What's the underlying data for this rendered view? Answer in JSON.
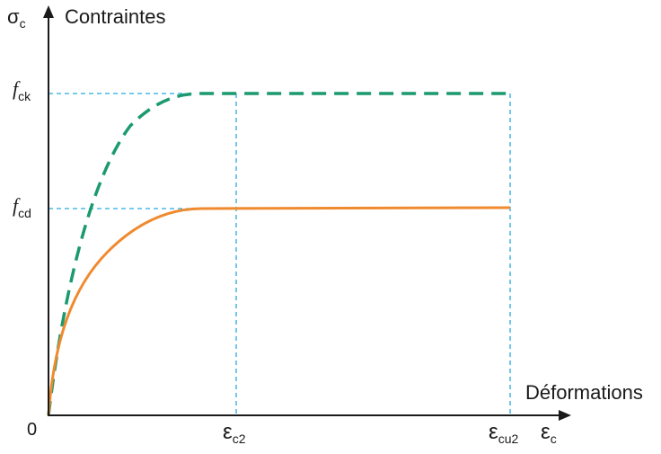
{
  "labels": {
    "y_axis_symbol": "σ",
    "y_axis_symbol_sub": "c",
    "y_axis_title": "Contraintes",
    "x_axis_title": "Déformations",
    "x_axis_symbol": "ε",
    "x_axis_symbol_sub": "c",
    "origin": "0",
    "fck_main": "f",
    "fck_sub": "ck",
    "fcd_main": "f",
    "fcd_sub": "cd",
    "ec2_main": "ε",
    "ec2_sub": "c2",
    "ecu2_main": "ε",
    "ecu2_sub": "cu2"
  },
  "colors": {
    "axis": "#1a1a1a",
    "guide": "#29a9e0",
    "characteristic_curve": "#1a9a6e",
    "design_curve": "#ef8a2e"
  }
}
